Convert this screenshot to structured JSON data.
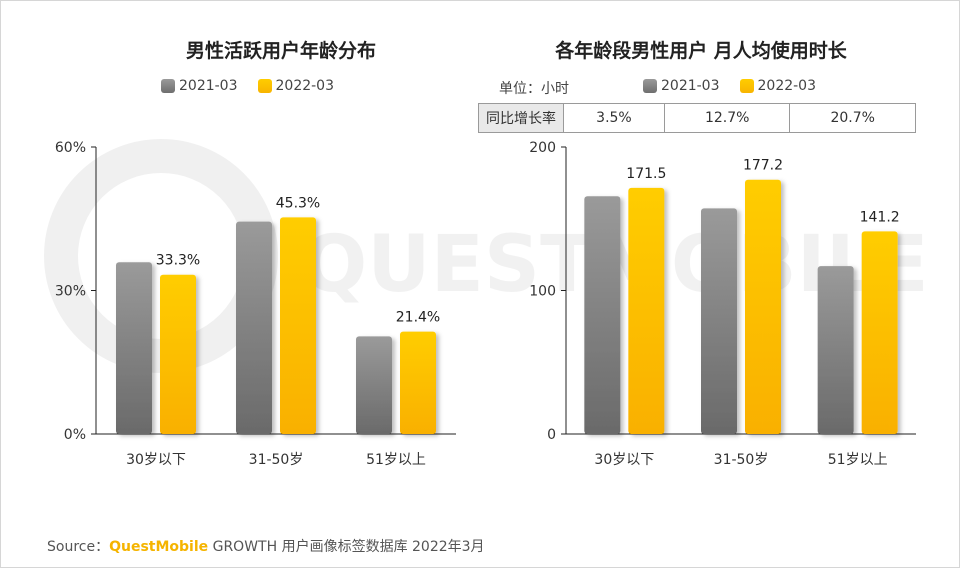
{
  "colors": {
    "series_2021": "#8a8a8a",
    "series_2022": "#ffc000",
    "brand": "#f5b400"
  },
  "legend": {
    "s1": "2021-03",
    "s2": "2022-03"
  },
  "unit_label": "单位：小时",
  "watermark": "QUESTMOBILE",
  "yoy": {
    "header": "同比增长率",
    "values": [
      "3.5%",
      "12.7%",
      "20.7%"
    ]
  },
  "source": {
    "prefix": "Source：",
    "brand": "QuestMobile",
    "rest": " GROWTH 用户画像标签数据库 2022年3月"
  },
  "chart_data": [
    {
      "type": "bar",
      "title": "男性活跃用户年龄分布",
      "categories": [
        "30岁以下",
        "31-50岁",
        "51岁以上"
      ],
      "series": [
        {
          "name": "2021-03",
          "values": [
            35.9,
            44.4,
            20.4
          ]
        },
        {
          "name": "2022-03",
          "values": [
            33.3,
            45.3,
            21.4
          ]
        }
      ],
      "data_labels": [
        "33.3%",
        "45.3%",
        "21.4%"
      ],
      "ylim": [
        0,
        60
      ],
      "yticks": [
        0,
        30,
        60
      ],
      "ytick_labels": [
        "0%",
        "30%",
        "60%"
      ],
      "xlabel": "",
      "ylabel": ""
    },
    {
      "type": "bar",
      "title": "各年龄段男性用户 月人均使用时长",
      "categories": [
        "30岁以下",
        "31-50岁",
        "51岁以上"
      ],
      "series": [
        {
          "name": "2021-03",
          "values": [
            165.7,
            157.2,
            117.0
          ]
        },
        {
          "name": "2022-03",
          "values": [
            171.5,
            177.2,
            141.2
          ]
        }
      ],
      "data_labels": [
        "171.5",
        "177.2",
        "141.2"
      ],
      "ylim": [
        0,
        200
      ],
      "yticks": [
        0,
        100,
        200
      ],
      "ytick_labels": [
        "0",
        "100",
        "200"
      ],
      "xlabel": "",
      "ylabel": ""
    }
  ]
}
